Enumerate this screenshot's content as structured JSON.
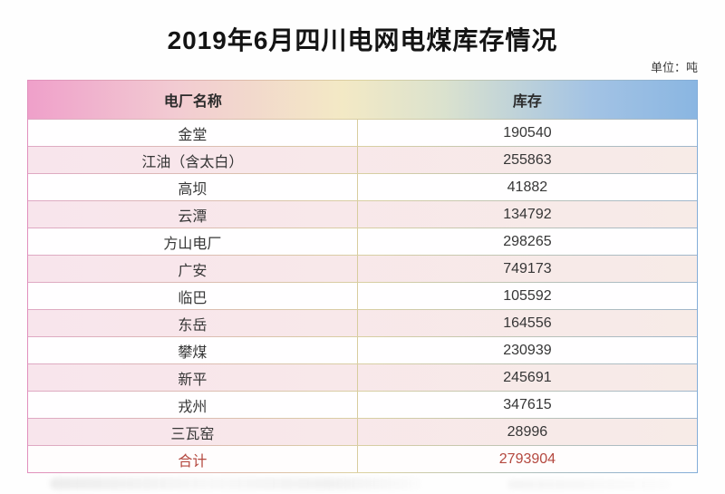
{
  "page": {
    "title": "2019年6月四川电网电煤库存情况",
    "unit_label": "单位：吨"
  },
  "table": {
    "columns": [
      "电厂名称",
      "库存"
    ],
    "rows": [
      {
        "name": "金堂",
        "value": "190540"
      },
      {
        "name": "江油（含太白）",
        "value": "255863"
      },
      {
        "name": "高坝",
        "value": "41882"
      },
      {
        "name": "云潭",
        "value": "134792"
      },
      {
        "name": "方山电厂",
        "value": "298265"
      },
      {
        "name": "广安",
        "value": "749173"
      },
      {
        "name": "临巴",
        "value": "105592"
      },
      {
        "name": "东岳",
        "value": "164556"
      },
      {
        "name": "攀煤",
        "value": "230939"
      },
      {
        "name": "新平",
        "value": "245691"
      },
      {
        "name": "戎州",
        "value": "347615"
      },
      {
        "name": "三瓦窑",
        "value": "28996"
      },
      {
        "name": "合计",
        "value": "2793904",
        "is_total": true
      }
    ]
  },
  "colors": {
    "header_gradient_left": "#efa0ca",
    "header_gradient_middle": "#f3e9c5",
    "header_gradient_right": "#8ab6e2",
    "alt_row_background": "#f7e8ea",
    "total_row_text": "#b4483f",
    "border_gradient_left": "#e190bd",
    "border_gradient_middle": "#dcd2a0",
    "border_gradient_right": "#83add9",
    "body_text": "#363636",
    "title_text": "#141414"
  },
  "chart_data": {
    "type": "table",
    "title": "2019年6月四川电网电煤库存情况",
    "unit": "吨",
    "columns": [
      "电厂名称",
      "库存"
    ],
    "rows": [
      [
        "金堂",
        190540
      ],
      [
        "江油（含太白）",
        255863
      ],
      [
        "高坝",
        41882
      ],
      [
        "云潭",
        134792
      ],
      [
        "方山电厂",
        298265
      ],
      [
        "广安",
        749173
      ],
      [
        "临巴",
        105592
      ],
      [
        "东岳",
        164556
      ],
      [
        "攀煤",
        230939
      ],
      [
        "新平",
        245691
      ],
      [
        "戎州",
        347615
      ],
      [
        "三瓦窑",
        28996
      ]
    ],
    "total": [
      "合计",
      2793904
    ],
    "layout": "two-column table, alternating white/pink rows, gradient header pink-to-blue, total row in red"
  }
}
